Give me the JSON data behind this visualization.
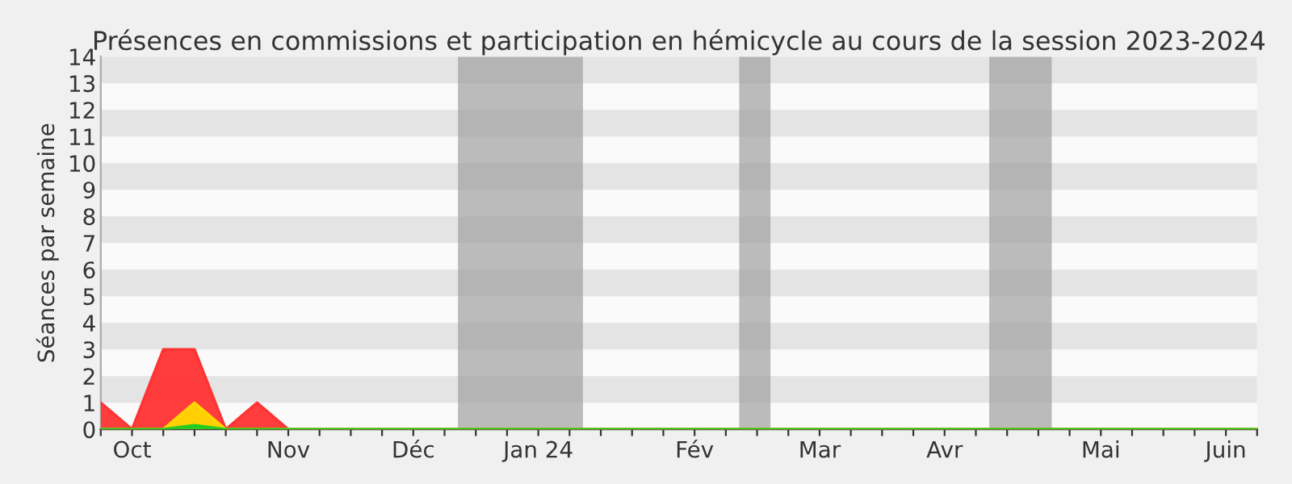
{
  "chart_data": {
    "type": "area",
    "title": "Présences en commissions et participation en hémicycle au cours de la session 2023-2024",
    "ylabel": "Séances par semaine",
    "x": [
      "2023-09-25",
      "2023-10-02",
      "2023-10-09",
      "2023-10-16",
      "2023-10-23",
      "2023-10-30",
      "2023-11-06",
      "2023-11-13",
      "2023-11-20",
      "2023-11-27",
      "2023-12-04",
      "2023-12-11",
      "2023-12-18",
      "2023-12-25",
      "2024-01-01",
      "2024-01-08",
      "2024-01-15",
      "2024-01-22",
      "2024-01-29",
      "2024-02-05",
      "2024-02-12",
      "2024-02-19",
      "2024-02-26",
      "2024-03-04",
      "2024-03-11",
      "2024-03-18",
      "2024-03-25",
      "2024-04-01",
      "2024-04-08",
      "2024-04-15",
      "2024-04-22",
      "2024-04-29",
      "2024-05-06",
      "2024-05-13",
      "2024-05-20",
      "2024-05-27",
      "2024-06-03",
      "2024-06-10"
    ],
    "series": [
      {
        "color": "#ff3333",
        "values": [
          1,
          0,
          3,
          3,
          0,
          1,
          0,
          0,
          0,
          0,
          0,
          0,
          0,
          0,
          0,
          0,
          0,
          0,
          0,
          0,
          0,
          0,
          0,
          0,
          0,
          0,
          0,
          0,
          0,
          0,
          0,
          0,
          0,
          0,
          0,
          0,
          0,
          0
        ]
      },
      {
        "color": "#ffd700",
        "values": [
          0,
          0,
          0,
          1,
          0,
          0,
          0,
          0,
          0,
          0,
          0,
          0,
          0,
          0,
          0,
          0,
          0,
          0,
          0,
          0,
          0,
          0,
          0,
          0,
          0,
          0,
          0,
          0,
          0,
          0,
          0,
          0,
          0,
          0,
          0,
          0,
          0,
          0
        ]
      },
      {
        "color": "#22cc22",
        "values": [
          0,
          0,
          0,
          0.15,
          0,
          0,
          0,
          0,
          0,
          0,
          0,
          0,
          0,
          0,
          0,
          0,
          0,
          0,
          0,
          0,
          0,
          0,
          0,
          0,
          0,
          0,
          0,
          0,
          0,
          0,
          0,
          0,
          0,
          0,
          0,
          0,
          0,
          0
        ]
      }
    ],
    "xlim": [
      "2023-09-25",
      "2024-06-10"
    ],
    "xticks": [
      {
        "value": "2023-09-25",
        "label": null
      },
      {
        "value": "2023-10-02",
        "label": "Oct"
      },
      {
        "value": "2023-10-09",
        "label": null
      },
      {
        "value": "2023-10-16",
        "label": null
      },
      {
        "value": "2023-10-23",
        "label": null
      },
      {
        "value": "2023-10-30",
        "label": null
      },
      {
        "value": "2023-11-06",
        "label": "Nov"
      },
      {
        "value": "2023-11-13",
        "label": null
      },
      {
        "value": "2023-11-20",
        "label": null
      },
      {
        "value": "2023-11-27",
        "label": null
      },
      {
        "value": "2023-12-04",
        "label": "Déc"
      },
      {
        "value": "2023-12-11",
        "label": null
      },
      {
        "value": "2023-12-18",
        "label": null
      },
      {
        "value": "2023-12-25",
        "label": null
      },
      {
        "value": "2024-01-01",
        "label": "Jan 24"
      },
      {
        "value": "2024-01-08",
        "label": null
      },
      {
        "value": "2024-01-15",
        "label": null
      },
      {
        "value": "2024-01-22",
        "label": null
      },
      {
        "value": "2024-01-29",
        "label": null
      },
      {
        "value": "2024-02-05",
        "label": "Fév"
      },
      {
        "value": "2024-02-12",
        "label": null
      },
      {
        "value": "2024-02-19",
        "label": null
      },
      {
        "value": "2024-02-26",
        "label": null
      },
      {
        "value": "2024-03-04",
        "label": "Mar"
      },
      {
        "value": "2024-03-11",
        "label": null
      },
      {
        "value": "2024-03-18",
        "label": null
      },
      {
        "value": "2024-03-25",
        "label": null
      },
      {
        "value": "2024-04-01",
        "label": "Avr"
      },
      {
        "value": "2024-04-08",
        "label": null
      },
      {
        "value": "2024-04-15",
        "label": null
      },
      {
        "value": "2024-04-22",
        "label": null
      },
      {
        "value": "2024-04-29",
        "label": null
      },
      {
        "value": "2024-05-06",
        "label": "Mai"
      },
      {
        "value": "2024-05-13",
        "label": null
      },
      {
        "value": "2024-05-20",
        "label": null
      },
      {
        "value": "2024-05-27",
        "label": null
      },
      {
        "value": "2024-06-03",
        "label": "Juin"
      },
      {
        "value": "2024-06-10",
        "label": null
      }
    ],
    "ylim": [
      0,
      14
    ],
    "yticks": [
      0,
      1,
      2,
      3,
      4,
      5,
      6,
      7,
      8,
      9,
      10,
      11,
      12,
      13,
      14
    ],
    "bands": [
      {
        "axis": "y",
        "from": 1,
        "to": 2,
        "color": "#e4e4e4"
      },
      {
        "axis": "y",
        "from": 3,
        "to": 4,
        "color": "#e4e4e4"
      },
      {
        "axis": "y",
        "from": 5,
        "to": 6,
        "color": "#e4e4e4"
      },
      {
        "axis": "y",
        "from": 7,
        "to": 8,
        "color": "#e4e4e4"
      },
      {
        "axis": "y",
        "from": 9,
        "to": 10,
        "color": "#e4e4e4"
      },
      {
        "axis": "y",
        "from": 11,
        "to": 12,
        "color": "#e4e4e4"
      },
      {
        "axis": "y",
        "from": 13,
        "to": 14,
        "color": "#e4e4e4"
      },
      {
        "axis": "x",
        "from": "2023-12-14",
        "to": "2024-01-11",
        "color": "#a0a0a0"
      },
      {
        "axis": "x",
        "from": "2024-02-15",
        "to": "2024-02-22",
        "color": "#a0a0a0"
      },
      {
        "axis": "x",
        "from": "2024-04-11",
        "to": "2024-04-25",
        "color": "#a0a0a0"
      }
    ]
  }
}
